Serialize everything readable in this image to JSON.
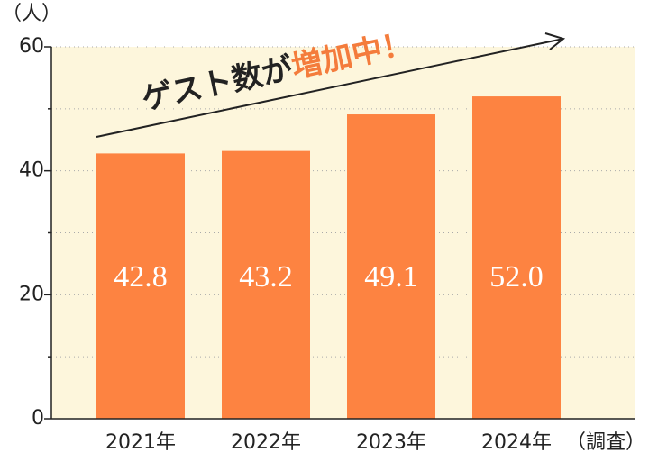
{
  "chart_data": {
    "type": "bar",
    "y_unit": "（人）",
    "x_note": "（調査）",
    "annotation": {
      "text": "ゲスト数が",
      "highlight": "増加中！",
      "highlight_color": "#f47c3c"
    },
    "categories": [
      "2021年",
      "2022年",
      "2023年",
      "2024年"
    ],
    "values": [
      42.8,
      43.2,
      49.1,
      52.0
    ],
    "value_labels": [
      "42.8",
      "43.2",
      "49.1",
      "52.0"
    ],
    "color": "#fd8341",
    "background": "#fdf6dc",
    "ylim": [
      0,
      60
    ],
    "yticks": [
      0,
      20,
      40,
      60
    ],
    "minor_yticks": [
      10,
      30,
      50
    ],
    "grid": true
  }
}
